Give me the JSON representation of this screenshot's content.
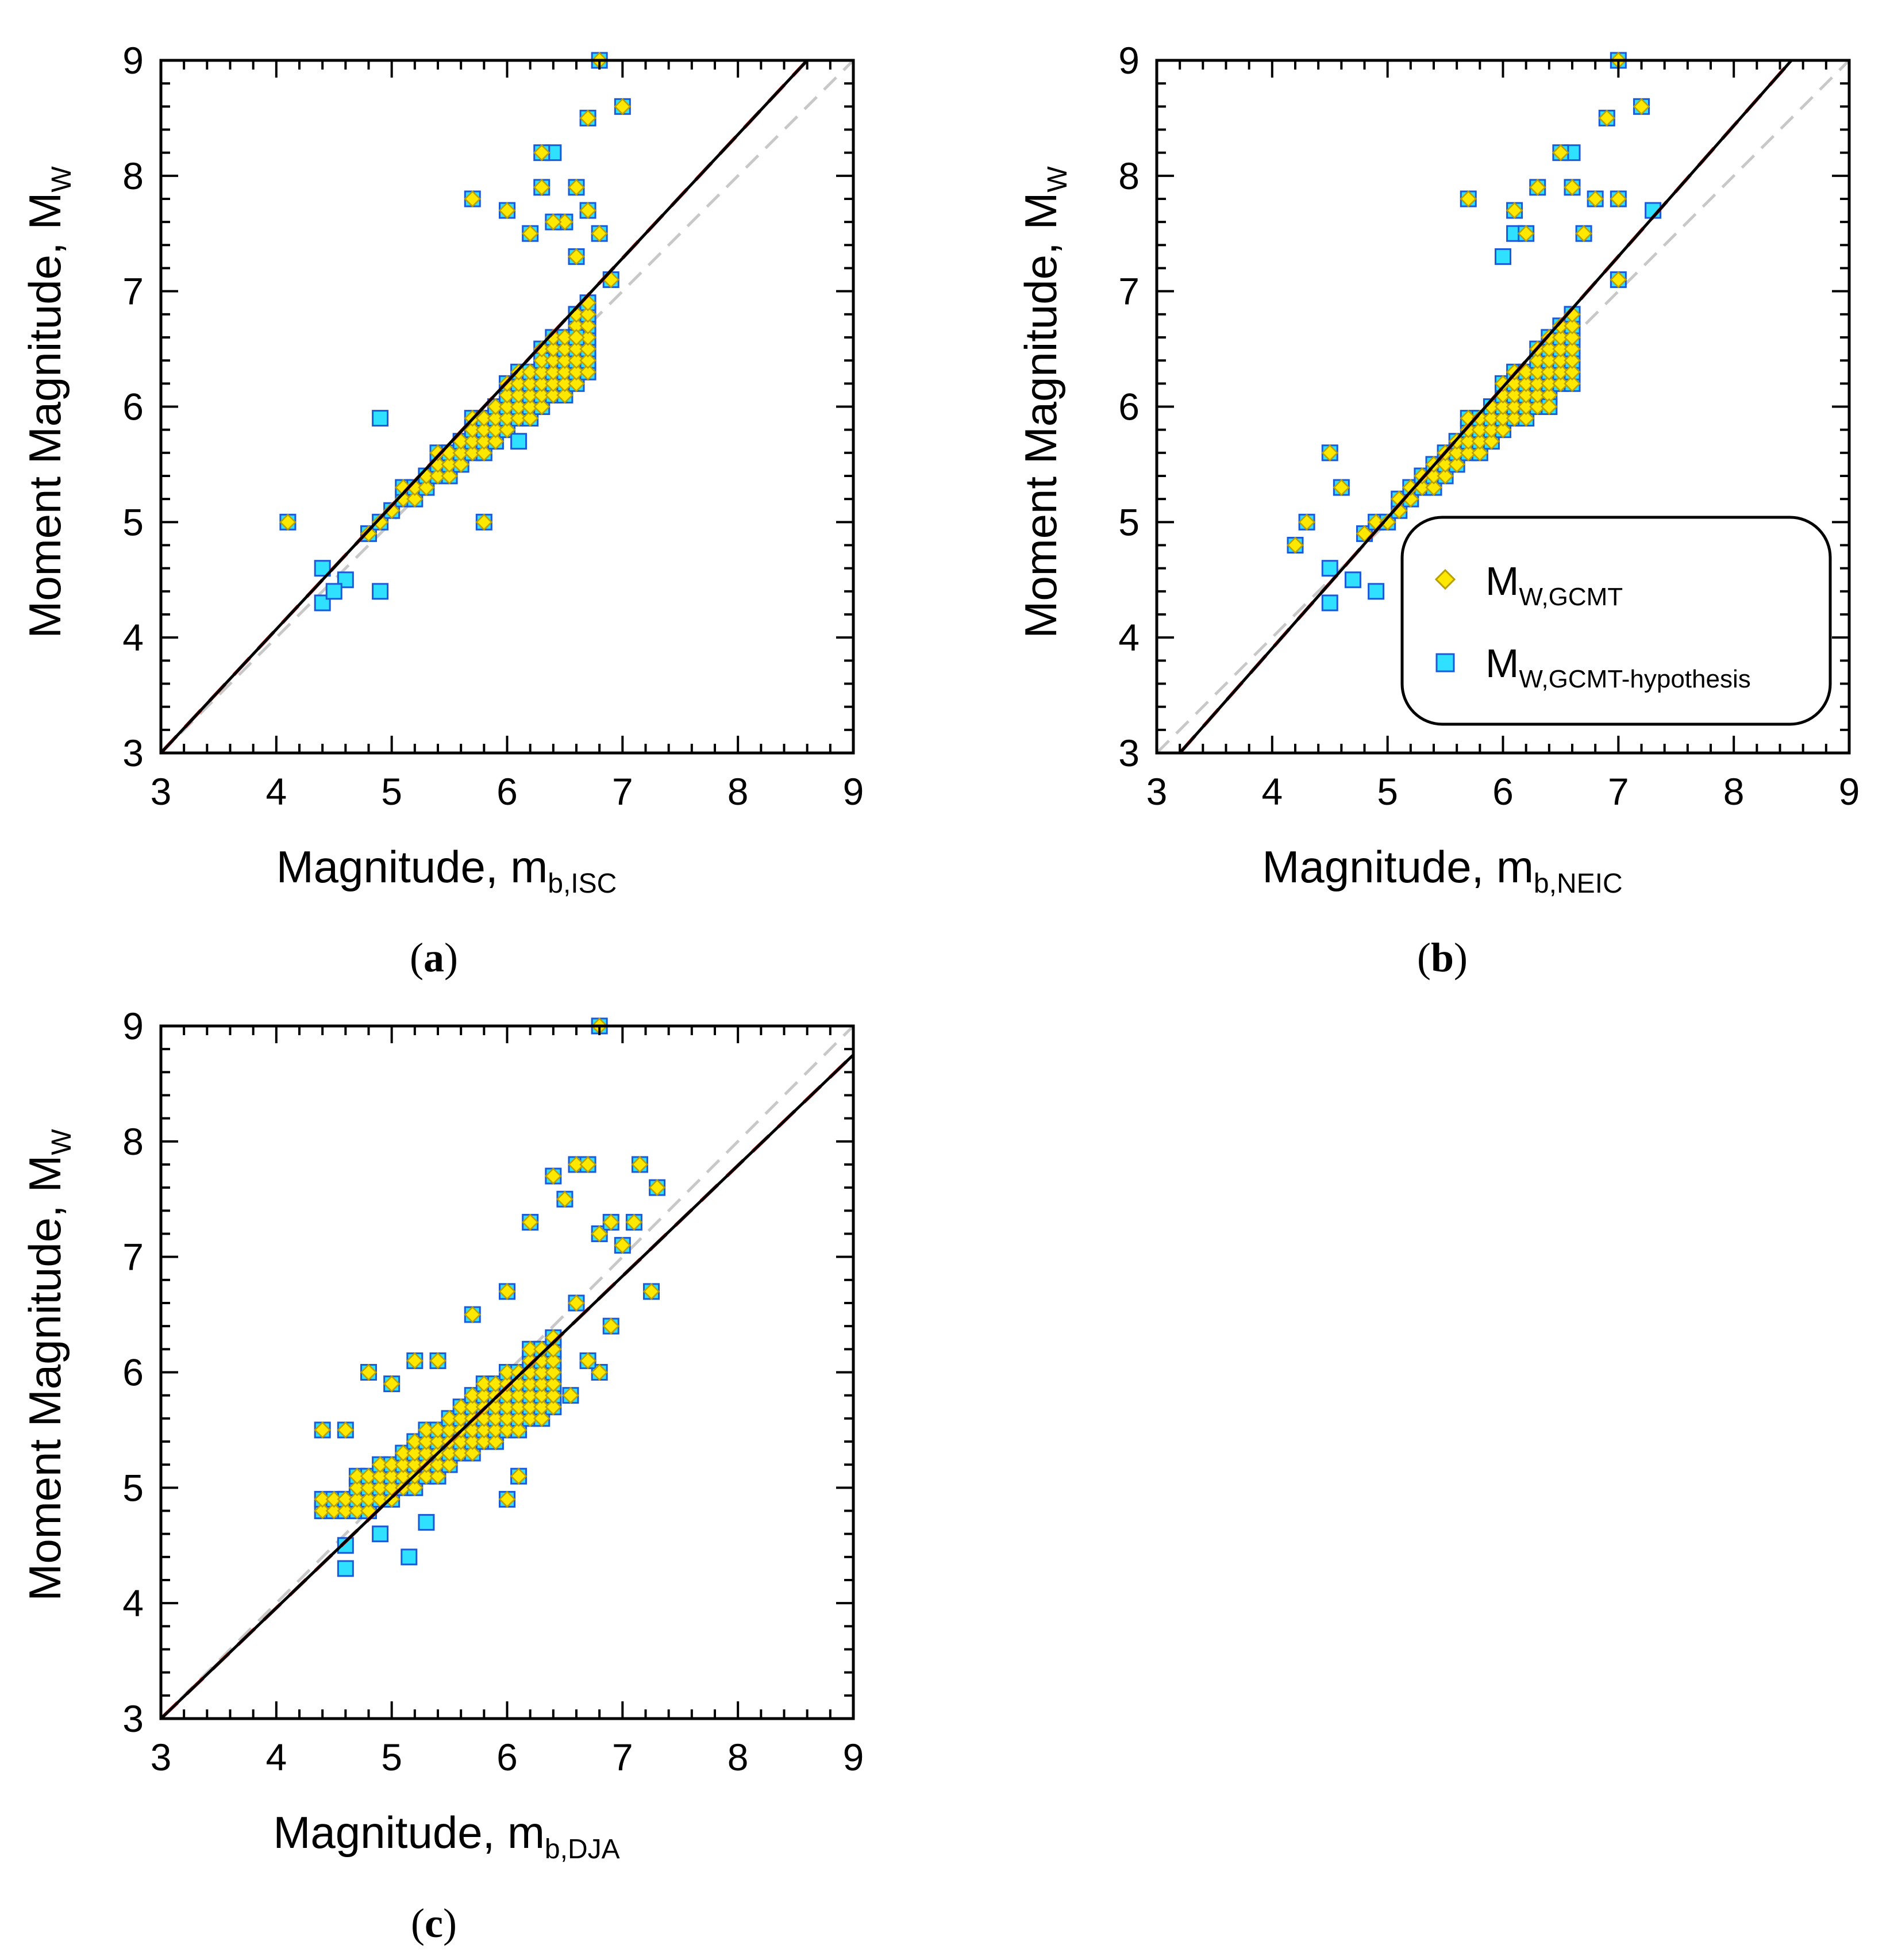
{
  "figure": {
    "panels": [
      "a",
      "b",
      "c"
    ]
  },
  "legend": {
    "diamond_label": "M",
    "diamond_sub": "W,GCMT",
    "square_label": "M",
    "square_sub": "W,GCMT-hypothesis"
  },
  "colors": {
    "diamond_fill": "#FFE800",
    "diamond_stroke": "#B7A000",
    "square_fill": "#2FE0FF",
    "square_stroke": "#1A5AD8",
    "fit_black": "#000000",
    "fit_red": "#E02020",
    "one_to_one": "#C8C8C8"
  },
  "chart_data": [
    {
      "id": "a",
      "type": "scatter",
      "panel_label": "a",
      "xlabel": "Magnitude, m",
      "xlabel_sub": "b,ISC",
      "ylabel": "Moment Magnitude, M",
      "ylabel_sub": "W",
      "xlim": [
        3,
        9
      ],
      "ylim": [
        3,
        9
      ],
      "xticks": [
        "3",
        "4",
        "5",
        "6",
        "7",
        "8",
        "9"
      ],
      "yticks": [
        "3",
        "4",
        "5",
        "6",
        "7",
        "8",
        "9"
      ],
      "legend": false,
      "fit_black": [
        [
          3.0,
          3.0
        ],
        [
          8.6,
          9.0
        ]
      ],
      "fit_red": [
        [
          3.0,
          3.0
        ],
        [
          8.6,
          9.0
        ]
      ],
      "one_to_one": [
        [
          3.0,
          3.0
        ],
        [
          9.0,
          9.0
        ]
      ],
      "cloud": {
        "x_min": 4.3,
        "x_max": 6.7,
        "base": 4.75,
        "low_slope": 0.7,
        "high_slope": 1.05,
        "high_offset": 6.0,
        "step": 0.1
      },
      "outliers_square": [
        [
          4.4,
          4.3
        ],
        [
          4.6,
          4.5
        ],
        [
          4.9,
          4.4
        ],
        [
          4.5,
          4.4
        ],
        [
          4.9,
          5.9
        ],
        [
          6.1,
          5.7
        ],
        [
          6.4,
          8.2
        ],
        [
          6.3,
          6.4
        ],
        [
          4.4,
          4.6
        ]
      ],
      "outliers_both": [
        [
          4.1,
          5.0
        ],
        [
          5.7,
          7.8
        ],
        [
          6.0,
          7.7
        ],
        [
          6.3,
          8.2
        ],
        [
          6.3,
          7.9
        ],
        [
          6.5,
          7.6
        ],
        [
          6.6,
          7.9
        ],
        [
          6.7,
          7.7
        ],
        [
          6.7,
          8.5
        ],
        [
          6.8,
          7.5
        ],
        [
          6.8,
          9.0
        ],
        [
          7.0,
          8.6
        ],
        [
          6.9,
          7.1
        ],
        [
          5.8,
          5.0
        ],
        [
          6.6,
          6.6
        ],
        [
          6.2,
          7.5
        ],
        [
          6.4,
          7.6
        ],
        [
          6.6,
          7.3
        ]
      ]
    },
    {
      "id": "b",
      "type": "scatter",
      "panel_label": "b",
      "xlabel": "Magnitude, m",
      "xlabel_sub": "b,NEIC",
      "ylabel": "Moment Magnitude, M",
      "ylabel_sub": "W",
      "xlim": [
        3,
        9
      ],
      "ylim": [
        3,
        9
      ],
      "xticks": [
        "3",
        "4",
        "5",
        "6",
        "7",
        "8",
        "9"
      ],
      "yticks": [
        "3",
        "4",
        "5",
        "6",
        "7",
        "8",
        "9"
      ],
      "legend": true,
      "fit_black": [
        [
          3.2,
          3.0
        ],
        [
          8.5,
          9.0
        ]
      ],
      "fit_red": [
        [
          3.2,
          3.0
        ],
        [
          8.5,
          9.0
        ]
      ],
      "one_to_one": [
        [
          3.0,
          3.0
        ],
        [
          9.0,
          9.0
        ]
      ],
      "cloud": {
        "x_min": 4.4,
        "x_max": 6.6,
        "base": 4.75,
        "low_slope": 0.75,
        "high_slope": 1.1,
        "high_offset": 6.0,
        "step": 0.1
      },
      "outliers_square": [
        [
          4.5,
          4.3
        ],
        [
          4.5,
          4.6
        ],
        [
          4.7,
          4.5
        ],
        [
          4.9,
          4.4
        ],
        [
          6.0,
          7.3
        ],
        [
          6.6,
          8.2
        ],
        [
          6.1,
          7.5
        ],
        [
          7.3,
          7.7
        ]
      ],
      "outliers_both": [
        [
          4.2,
          4.8
        ],
        [
          4.3,
          5.0
        ],
        [
          4.5,
          5.6
        ],
        [
          4.6,
          5.3
        ],
        [
          5.7,
          7.8
        ],
        [
          6.1,
          7.7
        ],
        [
          6.3,
          7.9
        ],
        [
          6.5,
          8.2
        ],
        [
          6.6,
          7.9
        ],
        [
          6.8,
          7.8
        ],
        [
          7.0,
          7.8
        ],
        [
          6.9,
          8.5
        ],
        [
          7.0,
          9.0
        ],
        [
          7.2,
          8.6
        ],
        [
          7.0,
          7.1
        ],
        [
          6.4,
          6.0
        ],
        [
          6.2,
          7.5
        ],
        [
          6.7,
          7.5
        ]
      ]
    },
    {
      "id": "c",
      "type": "scatter",
      "panel_label": "c",
      "xlabel": "Magnitude, m",
      "xlabel_sub": "b,DJA",
      "ylabel": "Moment Magnitude, M",
      "ylabel_sub": "W",
      "xlim": [
        3,
        9
      ],
      "ylim": [
        3,
        9
      ],
      "xticks": [
        "3",
        "4",
        "5",
        "6",
        "7",
        "8",
        "9"
      ],
      "yticks": [
        "3",
        "4",
        "5",
        "6",
        "7",
        "8",
        "9"
      ],
      "legend": false,
      "fit_black": [
        [
          3.0,
          3.0
        ],
        [
          9.0,
          8.75
        ]
      ],
      "fit_red": [
        [
          3.0,
          3.0
        ],
        [
          9.0,
          8.75
        ]
      ],
      "one_to_one": [
        [
          3.0,
          3.0
        ],
        [
          9.0,
          9.0
        ]
      ],
      "cloud": {
        "x_min": 4.4,
        "x_max": 6.4,
        "base": 4.75,
        "low_slope": 0.55,
        "high_slope": 0.75,
        "high_offset": 5.9,
        "step": 0.1
      },
      "outliers_square": [
        [
          4.6,
          4.3
        ],
        [
          4.6,
          4.5
        ],
        [
          4.9,
          4.6
        ],
        [
          5.15,
          4.4
        ],
        [
          5.3,
          4.7
        ]
      ],
      "outliers_both": [
        [
          4.4,
          5.5
        ],
        [
          4.6,
          5.5
        ],
        [
          4.8,
          6.0
        ],
        [
          5.0,
          5.9
        ],
        [
          5.2,
          6.1
        ],
        [
          5.4,
          6.1
        ],
        [
          5.7,
          6.5
        ],
        [
          6.0,
          6.7
        ],
        [
          6.2,
          7.3
        ],
        [
          6.4,
          7.7
        ],
        [
          6.5,
          7.5
        ],
        [
          6.6,
          7.8
        ],
        [
          6.7,
          7.8
        ],
        [
          6.8,
          7.2
        ],
        [
          6.9,
          7.3
        ],
        [
          7.1,
          7.3
        ],
        [
          7.15,
          7.8
        ],
        [
          7.3,
          7.6
        ],
        [
          7.25,
          6.7
        ],
        [
          6.9,
          6.4
        ],
        [
          6.8,
          6.0
        ],
        [
          6.7,
          6.1
        ],
        [
          6.0,
          4.9
        ],
        [
          6.1,
          5.1
        ],
        [
          6.8,
          9.0
        ],
        [
          6.6,
          6.6
        ],
        [
          6.55,
          5.8
        ],
        [
          7.0,
          7.1
        ]
      ]
    }
  ]
}
